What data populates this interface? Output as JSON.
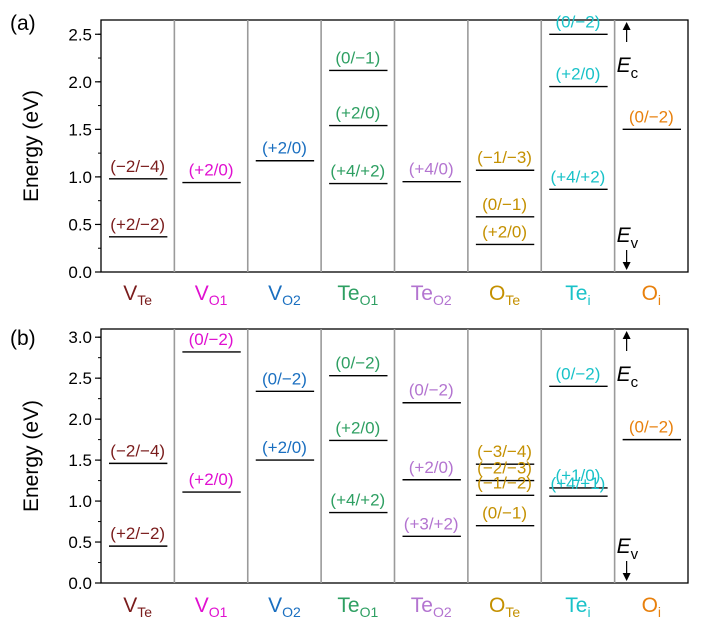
{
  "chart_data": [
    {
      "type": "energy-level-diagram",
      "panel_label": "(a)",
      "ylabel": "Energy (eV)",
      "ylim": [
        0,
        2.65
      ],
      "yticks": [
        0.0,
        0.5,
        1.0,
        1.5,
        2.0,
        2.5
      ],
      "ytick_labels": [
        "0.0",
        "0.5",
        "1.0",
        "1.5",
        "2.0",
        "2.5"
      ],
      "y_minor_step": 0.25,
      "grid": false,
      "band_edges": {
        "cbm_label": "E",
        "cbm_sub": "c",
        "vbm_label": "E",
        "vbm_sub": "v"
      },
      "defects": [
        {
          "name": "V",
          "sub": "Te",
          "color": "#7a1c1c",
          "levels": [
            {
              "label": "(−2/−4)",
              "value": 0.98
            },
            {
              "label": "(+2/−2)",
              "value": 0.37
            }
          ]
        },
        {
          "name": "V",
          "sub": "O1",
          "color": "#e010d0",
          "levels": [
            {
              "label": "(+2/0)",
              "value": 0.94
            }
          ]
        },
        {
          "name": "V",
          "sub": "O2",
          "color": "#1a6fc0",
          "levels": [
            {
              "label": "(+2/0)",
              "value": 1.17
            }
          ]
        },
        {
          "name": "Te",
          "sub": "O1",
          "color": "#2e9f62",
          "levels": [
            {
              "label": "(0/−1)",
              "value": 2.12
            },
            {
              "label": "(+2/0)",
              "value": 1.54
            },
            {
              "label": "(+4/+2)",
              "value": 0.93
            }
          ]
        },
        {
          "name": "Te",
          "sub": "O2",
          "color": "#b374d0",
          "levels": [
            {
              "label": "(+4/0)",
              "value": 0.95
            }
          ]
        },
        {
          "name": "O",
          "sub": "Te",
          "color": "#c49000",
          "levels": [
            {
              "label": "(−1/−3)",
              "value": 1.07
            },
            {
              "label": "(0/−1)",
              "value": 0.58
            },
            {
              "label": "(+2/0)",
              "value": 0.29
            }
          ]
        },
        {
          "name": "Te",
          "sub": "i",
          "color": "#19c2c8",
          "levels": [
            {
              "label": "(0/−2)",
              "value": 2.5
            },
            {
              "label": "(+2/0)",
              "value": 1.95
            },
            {
              "label": "(+4/+2)",
              "value": 0.87
            }
          ]
        },
        {
          "name": "O",
          "sub": "i",
          "color": "#e8800c",
          "levels": [
            {
              "label": "(0/−2)",
              "value": 1.5
            }
          ]
        }
      ]
    },
    {
      "type": "energy-level-diagram",
      "panel_label": "(b)",
      "ylabel": "Energy (eV)",
      "ylim": [
        0,
        3.1
      ],
      "yticks": [
        0.0,
        0.5,
        1.0,
        1.5,
        2.0,
        2.5,
        3.0
      ],
      "ytick_labels": [
        "0.0",
        "0.5",
        "1.0",
        "1.5",
        "2.0",
        "2.5",
        "3.0"
      ],
      "y_minor_step": 0.25,
      "grid": false,
      "band_edges": {
        "cbm_label": "E",
        "cbm_sub": "c",
        "vbm_label": "E",
        "vbm_sub": "v"
      },
      "defects": [
        {
          "name": "V",
          "sub": "Te",
          "color": "#7a1c1c",
          "levels": [
            {
              "label": "(−2/−4)",
              "value": 1.46
            },
            {
              "label": "(+2/−2)",
              "value": 0.45
            }
          ]
        },
        {
          "name": "V",
          "sub": "O1",
          "color": "#e010d0",
          "levels": [
            {
              "label": "(0/−2)",
              "value": 2.82
            },
            {
              "label": "(+2/0)",
              "value": 1.11
            }
          ]
        },
        {
          "name": "V",
          "sub": "O2",
          "color": "#1a6fc0",
          "levels": [
            {
              "label": "(0/−2)",
              "value": 2.34
            },
            {
              "label": "(+2/0)",
              "value": 1.5
            }
          ]
        },
        {
          "name": "Te",
          "sub": "O1",
          "color": "#2e9f62",
          "levels": [
            {
              "label": "(0/−2)",
              "value": 2.53
            },
            {
              "label": "(+2/0)",
              "value": 1.74
            },
            {
              "label": "(+4/+2)",
              "value": 0.86
            }
          ]
        },
        {
          "name": "Te",
          "sub": "O2",
          "color": "#b374d0",
          "levels": [
            {
              "label": "(0/−2)",
              "value": 2.2
            },
            {
              "label": "(+2/0)",
              "value": 1.26
            },
            {
              "label": "(+3/+2)",
              "value": 0.57
            }
          ]
        },
        {
          "name": "O",
          "sub": "Te",
          "color": "#c49000",
          "levels": [
            {
              "label": "(−3/−4)",
              "value": 1.45
            },
            {
              "label": "(−2/−3)",
              "value": 1.25
            },
            {
              "label": "(−1/−2)",
              "value": 1.07
            },
            {
              "label": "(0/−1)",
              "value": 0.7
            }
          ]
        },
        {
          "name": "Te",
          "sub": "i",
          "color": "#19c2c8",
          "levels": [
            {
              "label": "(0/−2)",
              "value": 2.4
            },
            {
              "label": "(+1/0)",
              "value": 1.16
            },
            {
              "label": "(+4/+1)",
              "value": 1.06
            }
          ]
        },
        {
          "name": "O",
          "sub": "i",
          "color": "#e8800c",
          "levels": [
            {
              "label": "(0/−2)",
              "value": 1.75
            }
          ]
        }
      ]
    }
  ]
}
